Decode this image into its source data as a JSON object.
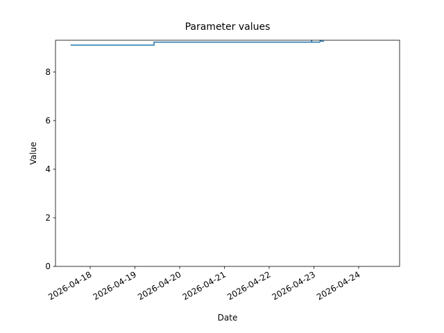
{
  "chart_data": {
    "type": "line",
    "title": "Parameter values",
    "x_label": "Date",
    "y_label": "Value",
    "x": [
      "2026-04-17 13:30",
      "2026-04-19 10:15",
      "2026-04-19 10:16",
      "2026-04-22 22:40",
      "2026-04-22 22:45",
      "2026-04-22 23:00",
      "2026-04-23 03:10",
      "2026-04-23 03:20",
      "2026-04-23 05:25"
    ],
    "series": [
      {
        "name": "Value",
        "color": "#1f77b4",
        "values": [
          9.11,
          9.11,
          9.23,
          9.23,
          9.3,
          9.23,
          9.23,
          9.28,
          9.26
        ]
      }
    ],
    "xlim": [
      "2026-04-17 05:24",
      "2026-04-24 21:58"
    ],
    "xticks": [
      "2026-04-18",
      "2026-04-19",
      "2026-04-20",
      "2026-04-21",
      "2026-04-22",
      "2026-04-23",
      "2026-04-24"
    ],
    "ylim": [
      0,
      9.31
    ],
    "yticks": [
      0,
      2,
      4,
      6,
      8
    ],
    "grid": false
  }
}
